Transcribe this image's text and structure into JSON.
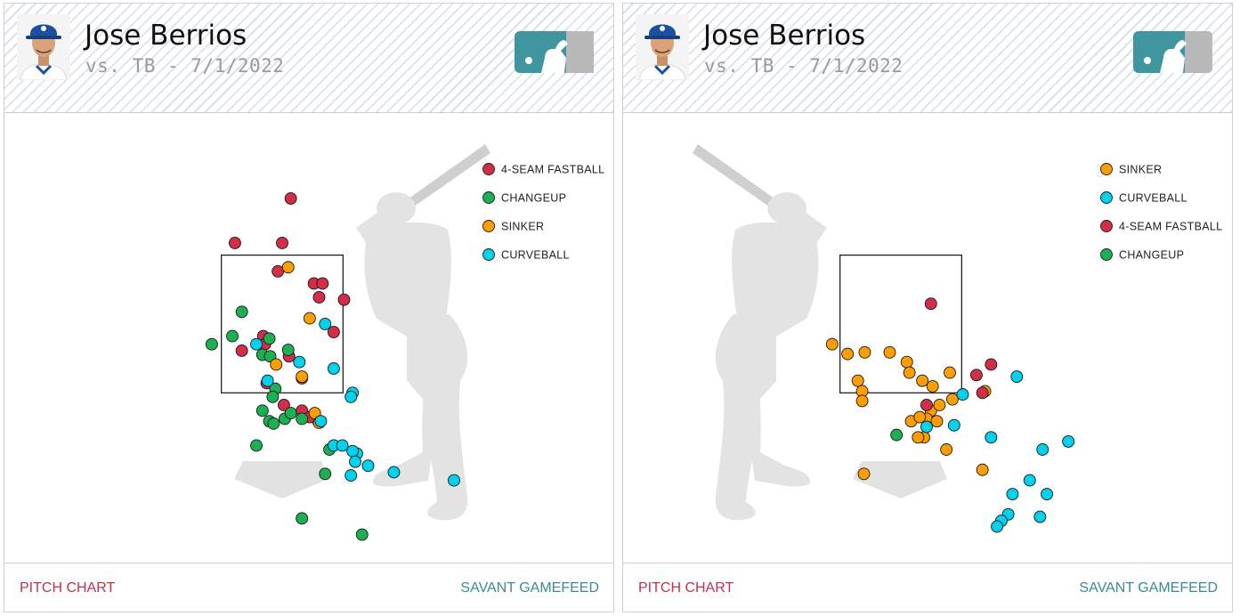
{
  "colors": {
    "4-SEAM FASTBALL": "#d22d49",
    "CHANGEUP": "#1db053",
    "SINKER": "#fe9d00",
    "CURVEBALL": "#00d1ed",
    "link_red": "#c0304a",
    "link_teal": "#3b8a96",
    "logo_teal": "#40969e"
  },
  "icons": {
    "avatar": "player-headshot-icon",
    "logo": "league-logo-icon"
  },
  "cards": [
    {
      "player_name": "Jose Berrios",
      "game_info": "vs. TB - 7/1/2022",
      "footer_left": "PITCH CHART",
      "footer_right": "SAVANT GAMEFEED"
    },
    {
      "player_name": "Jose Berrios",
      "game_info": "vs. TB - 7/1/2022",
      "footer_left": "PITCH CHART",
      "footer_right": "SAVANT GAMEFEED"
    }
  ],
  "chart_data": [
    {
      "type": "scatter",
      "batter_side": "R",
      "legend": [
        "4-SEAM FASTBALL",
        "CHANGEUP",
        "SINKER",
        "CURVEBALL"
      ],
      "series": [
        {
          "name": "4-SEAM FASTBALL",
          "points": [
            [
              0.1,
              4.1
            ],
            [
              -0.55,
              3.55
            ],
            [
              -0.05,
              3.2
            ],
            [
              0,
              3.55
            ],
            [
              0.37,
              3.05
            ],
            [
              0.47,
              3.05
            ],
            [
              0.43,
              2.88
            ],
            [
              0.72,
              2.85
            ],
            [
              0.6,
              2.45
            ],
            [
              -0.22,
              2.4
            ],
            [
              -0.47,
              2.22
            ],
            [
              0.08,
              2.15
            ],
            [
              0.23,
              1.88
            ],
            [
              0.23,
              1.48
            ],
            [
              0.02,
              1.55
            ],
            [
              0.42,
              1.35
            ],
            [
              -0.18,
              1.82
            ],
            [
              0.32,
              1.4
            ],
            [
              -0.2,
              2.3
            ]
          ]
        },
        {
          "name": "CHANGEUP",
          "points": [
            [
              -0.47,
              2.7
            ],
            [
              -0.58,
              2.4
            ],
            [
              -0.82,
              2.3
            ],
            [
              -0.15,
              2.37
            ],
            [
              -0.23,
              2.17
            ],
            [
              0.07,
              2.23
            ],
            [
              -0.14,
              2.15
            ],
            [
              -0.08,
              1.75
            ],
            [
              -0.11,
              1.65
            ],
            [
              -0.23,
              1.48
            ],
            [
              -0.15,
              1.35
            ],
            [
              -0.1,
              1.32
            ],
            [
              0.03,
              1.38
            ],
            [
              0.1,
              1.45
            ],
            [
              0.55,
              1.0
            ],
            [
              -0.3,
              1.05
            ],
            [
              0.5,
              0.7
            ],
            [
              0.23,
              0.15
            ],
            [
              0.93,
              -0.05
            ],
            [
              0.23,
              1.38
            ]
          ]
        },
        {
          "name": "SINKER",
          "points": [
            [
              0.07,
              3.25
            ],
            [
              0.32,
              2.62
            ],
            [
              -0.07,
              2.05
            ],
            [
              0.23,
              1.9
            ],
            [
              0.38,
              1.45
            ],
            [
              0.43,
              1.33
            ]
          ]
        },
        {
          "name": "CURVEBALL",
          "points": [
            [
              -0.3,
              2.3
            ],
            [
              -0.17,
              1.85
            ],
            [
              0.2,
              2.08
            ],
            [
              0.5,
              2.55
            ],
            [
              0.6,
              2.0
            ],
            [
              0.82,
              1.7
            ],
            [
              0.8,
              1.65
            ],
            [
              0.6,
              1.05
            ],
            [
              0.7,
              1.05
            ],
            [
              0.87,
              0.95
            ],
            [
              0.82,
              0.98
            ],
            [
              0.85,
              0.85
            ],
            [
              1.0,
              0.8
            ],
            [
              0.8,
              0.68
            ],
            [
              1.3,
              0.72
            ],
            [
              2.0,
              0.62
            ],
            [
              0.45,
              1.35
            ]
          ]
        }
      ]
    },
    {
      "type": "scatter",
      "batter_side": "L",
      "legend": [
        "SINKER",
        "CURVEBALL",
        "4-SEAM FASTBALL",
        "CHANGEUP"
      ],
      "series": [
        {
          "name": "SINKER",
          "points": [
            [
              -0.8,
              2.3
            ],
            [
              -0.42,
              2.2
            ],
            [
              -0.13,
              2.2
            ],
            [
              -0.5,
              1.85
            ],
            [
              -0.62,
              2.18
            ],
            [
              -0.45,
              1.72
            ],
            [
              -0.45,
              1.6
            ],
            [
              0.07,
              2.08
            ],
            [
              0.1,
              1.95
            ],
            [
              0.57,
              1.95
            ],
            [
              0.37,
              1.78
            ],
            [
              0.25,
              1.85
            ],
            [
              0.35,
              1.48
            ],
            [
              0.45,
              1.55
            ],
            [
              0.6,
              1.62
            ],
            [
              0.3,
              1.38
            ],
            [
              0.12,
              1.35
            ],
            [
              0.27,
              1.15
            ],
            [
              0.2,
              1.15
            ],
            [
              0.53,
              1.0
            ],
            [
              0.98,
              1.72
            ],
            [
              -0.43,
              0.7
            ],
            [
              0.95,
              0.75
            ],
            [
              0.42,
              1.35
            ],
            [
              0.22,
              1.4
            ]
          ]
        },
        {
          "name": "CURVEBALL",
          "points": [
            [
              0.72,
              1.68
            ],
            [
              1.35,
              1.9
            ],
            [
              0.62,
              1.3
            ],
            [
              1.05,
              1.15
            ],
            [
              1.65,
              1.0
            ],
            [
              1.95,
              1.1
            ],
            [
              1.5,
              0.62
            ],
            [
              1.7,
              0.45
            ],
            [
              1.3,
              0.45
            ],
            [
              1.25,
              0.2
            ],
            [
              1.17,
              0.12
            ],
            [
              1.12,
              0.05
            ],
            [
              1.62,
              0.17
            ],
            [
              0.3,
              1.28
            ]
          ]
        },
        {
          "name": "4-SEAM FASTBALL",
          "points": [
            [
              0.35,
              2.8
            ],
            [
              1.05,
              2.05
            ],
            [
              0.88,
              1.92
            ],
            [
              0.3,
              1.55
            ],
            [
              0.95,
              1.7
            ]
          ]
        },
        {
          "name": "CHANGEUP",
          "points": [
            [
              -0.05,
              1.18
            ]
          ]
        }
      ]
    }
  ]
}
